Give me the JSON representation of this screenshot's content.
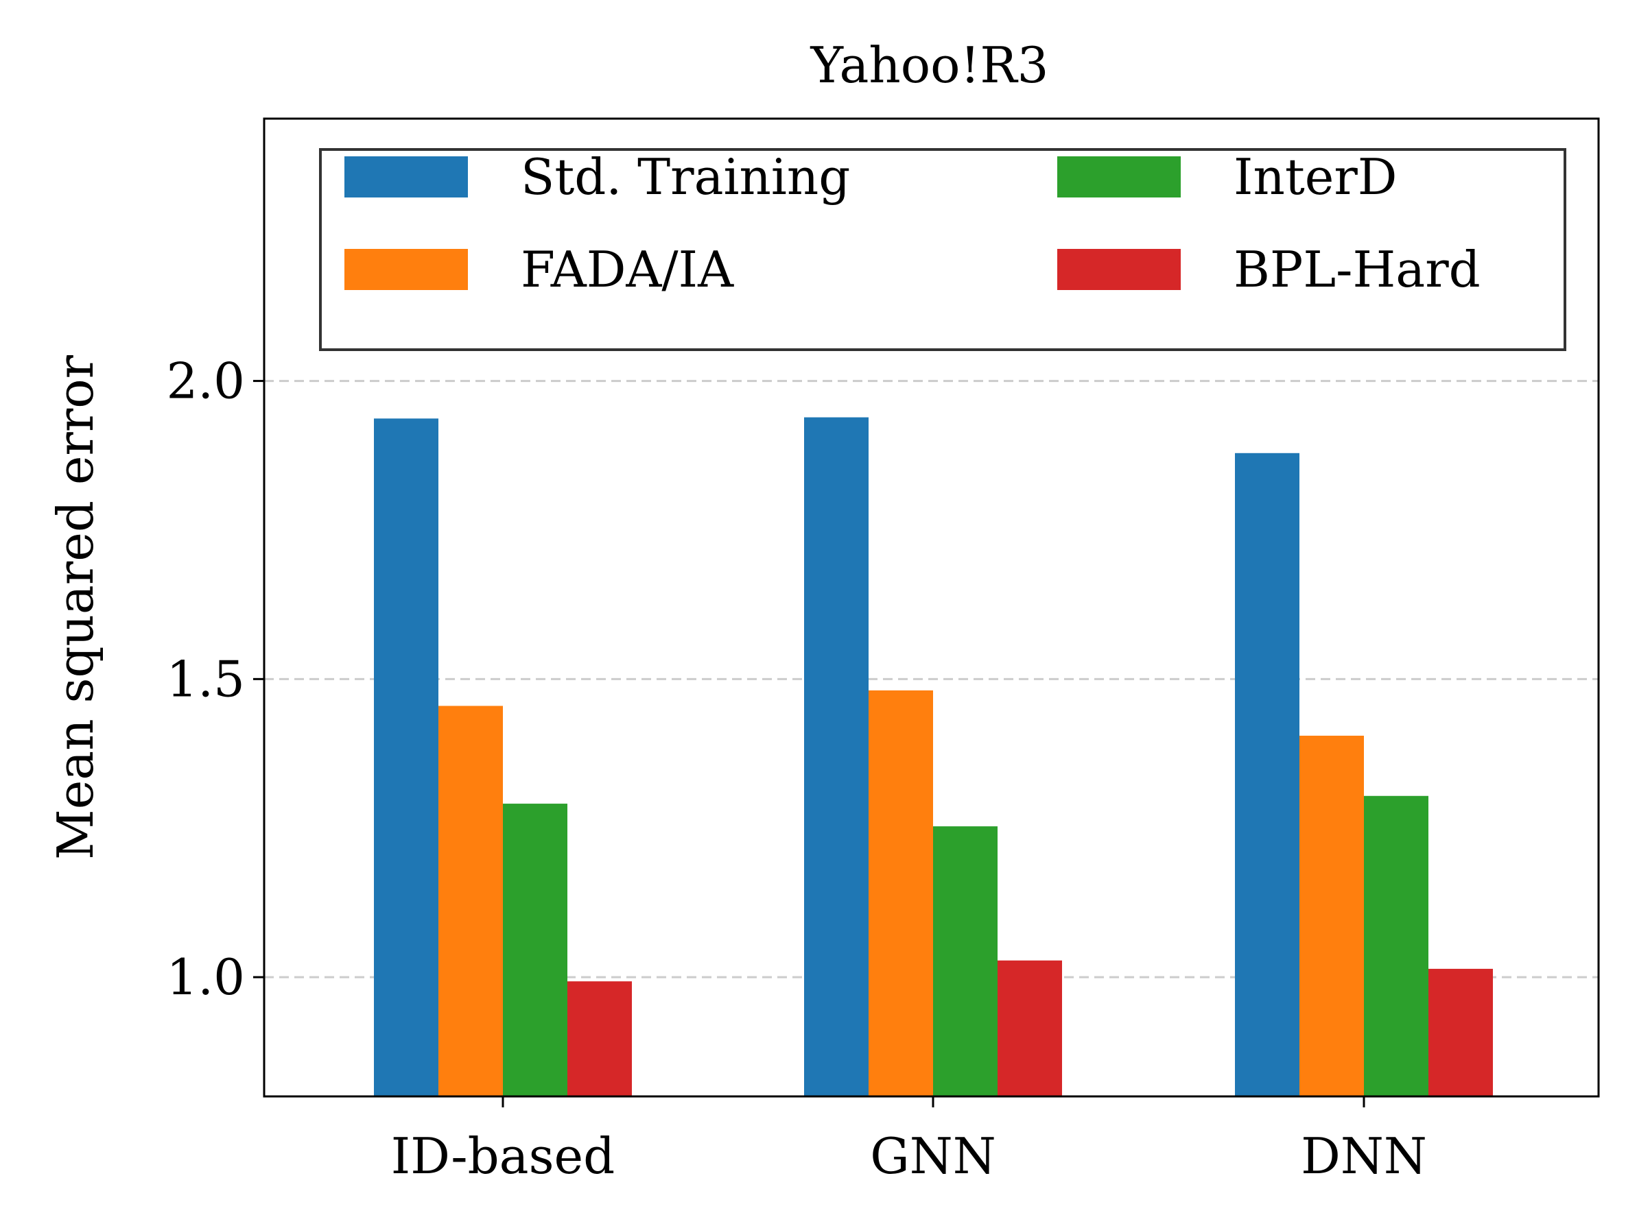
{
  "chart_data": {
    "type": "bar",
    "title": "Yahoo!R3",
    "xlabel": "",
    "ylabel": "Mean squared error",
    "categories": [
      "ID-based",
      "GNN",
      "DNN"
    ],
    "ylim": [
      0.8,
      2.44
    ],
    "yticks": [
      1.0,
      1.5,
      2.0
    ],
    "ytick_labels": [
      "1.0",
      "1.5",
      "2.0"
    ],
    "grid": "horizontal, dashed",
    "legend_position": "top",
    "series": [
      {
        "name": "Std. Training",
        "color": "#1f77b4",
        "values": [
          1.937,
          1.939,
          1.879
        ]
      },
      {
        "name": "FADA/IA",
        "color": "#ff7f0e",
        "values": [
          1.455,
          1.481,
          1.405
        ]
      },
      {
        "name": "InterD",
        "color": "#2ca02c",
        "values": [
          1.291,
          1.253,
          1.304
        ]
      },
      {
        "name": "BPL-Hard",
        "color": "#d62728",
        "values": [
          0.993,
          1.028,
          1.014
        ]
      }
    ]
  }
}
